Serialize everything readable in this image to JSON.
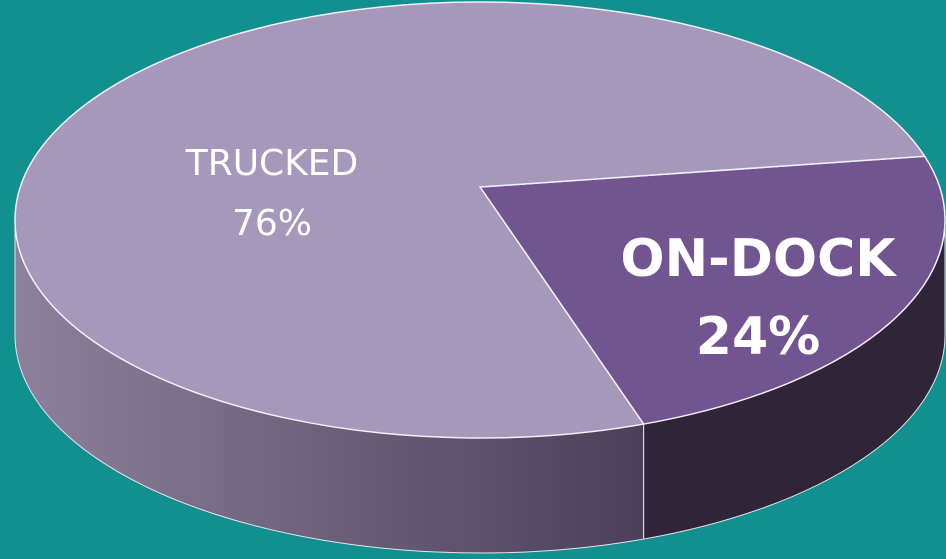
{
  "chart_data": {
    "type": "pie",
    "categories": [
      "ON-DOCK",
      "TRUCKED"
    ],
    "values": [
      24,
      76
    ],
    "value_labels": [
      "24%",
      "76%"
    ],
    "colors": [
      "#725590",
      "#a598bb"
    ]
  }
}
